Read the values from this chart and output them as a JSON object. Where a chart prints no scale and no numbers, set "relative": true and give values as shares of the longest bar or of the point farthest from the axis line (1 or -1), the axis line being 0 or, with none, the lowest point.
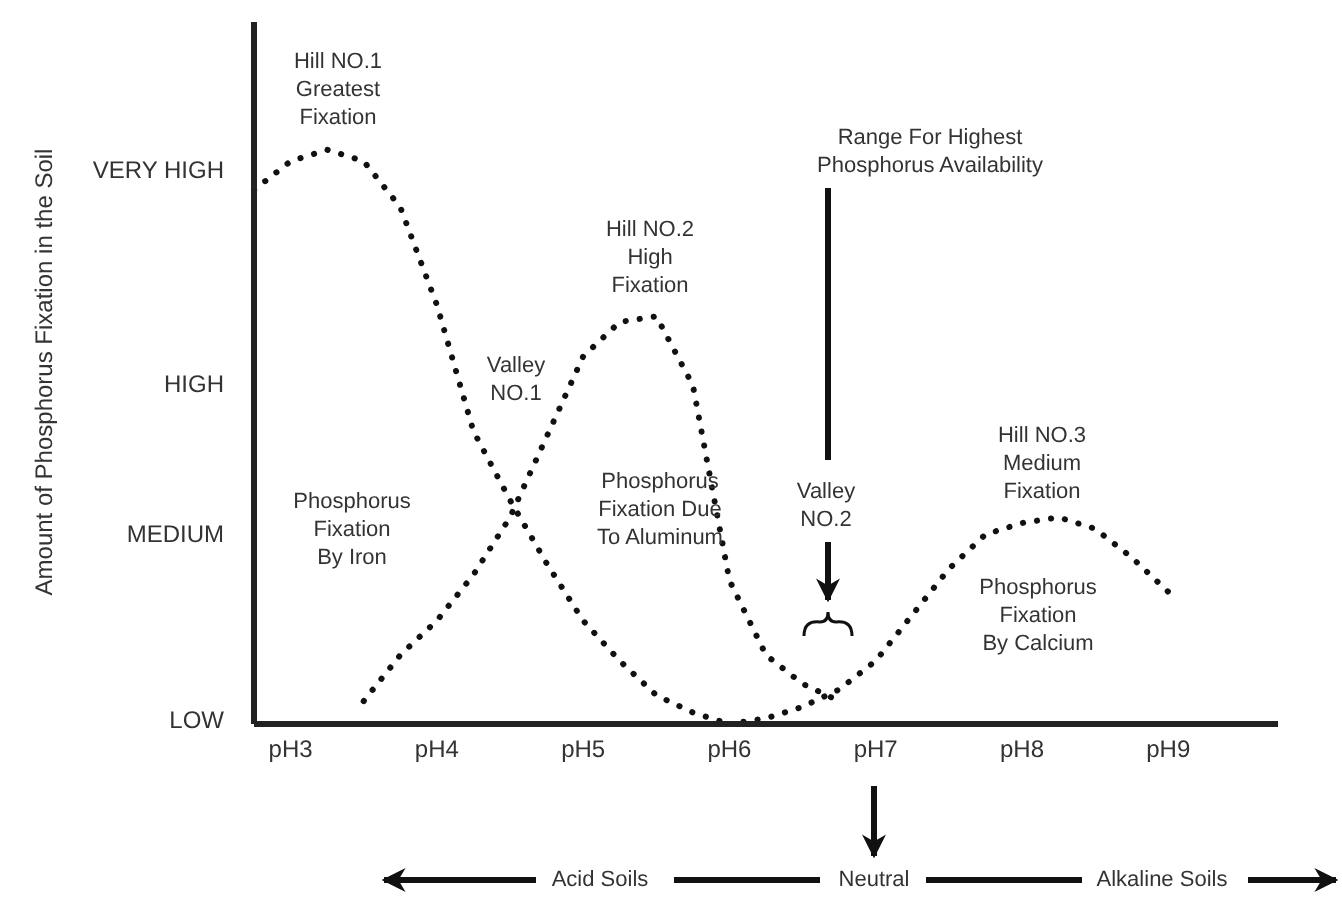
{
  "chart_data": {
    "type": "line",
    "relative": true,
    "categories": [
      null,
      "pH3",
      null,
      null,
      null,
      "pH4",
      null,
      null,
      null,
      "pH5",
      null,
      null,
      null,
      "pH6",
      null,
      null,
      null,
      "pH7",
      null,
      null,
      null,
      "pH8",
      null,
      null,
      null,
      "pH9",
      null,
      null,
      null
    ],
    "line_style": "dotted",
    "marker": "none",
    "series": [
      {
        "color": "#111111",
        "values": [
          0.93,
          0.98,
          1,
          0.98,
          0.9,
          0.73,
          0.51,
          0.39,
          0.28,
          0.18,
          0.11,
          0.05,
          0.02,
          0,
          null,
          null,
          null,
          null,
          null,
          null,
          null,
          null,
          null,
          null,
          null,
          null,
          null,
          null,
          null
        ]
      },
      {
        "color": "#111111",
        "values": [
          null,
          null,
          null,
          0.04,
          0.12,
          0.18,
          0.26,
          0.36,
          0.5,
          0.64,
          0.7,
          0.71,
          0.59,
          0.25,
          0.12,
          0.07,
          0.04,
          null,
          null,
          null,
          null,
          null,
          null,
          null,
          null,
          null,
          null,
          null,
          null
        ]
      },
      {
        "color": "#111111",
        "values": [
          null,
          null,
          null,
          null,
          null,
          null,
          null,
          null,
          null,
          null,
          null,
          null,
          null,
          0,
          0.01,
          0.03,
          0.06,
          0.11,
          0.19,
          0.27,
          0.33,
          0.35,
          0.36,
          0.34,
          0.29,
          0.23,
          null,
          null,
          null
        ]
      }
    ],
    "annotations": [
      "Hill NO.1\nGreatest\nFixation",
      "Hill NO.2\nHigh\nFixation",
      "Valley\nNO.1",
      "Phosphorus\nFixation\nBy Iron",
      "Phosphorus\nFixation Due\nTo Aluminum",
      "Range For Highest\nPhosphorus Availability",
      "Valley\nNO.2",
      "Hill NO.3\nMedium\nFixation",
      "Phosphorus\nFixation\nBy Calcium",
      "VERY HIGH",
      "HIGH",
      "MEDIUM",
      "LOW",
      "Acid Soils",
      "Neutral",
      "Alkaline Soils",
      "Amount of Phosphorus Fixation in the Soil"
    ]
  }
}
